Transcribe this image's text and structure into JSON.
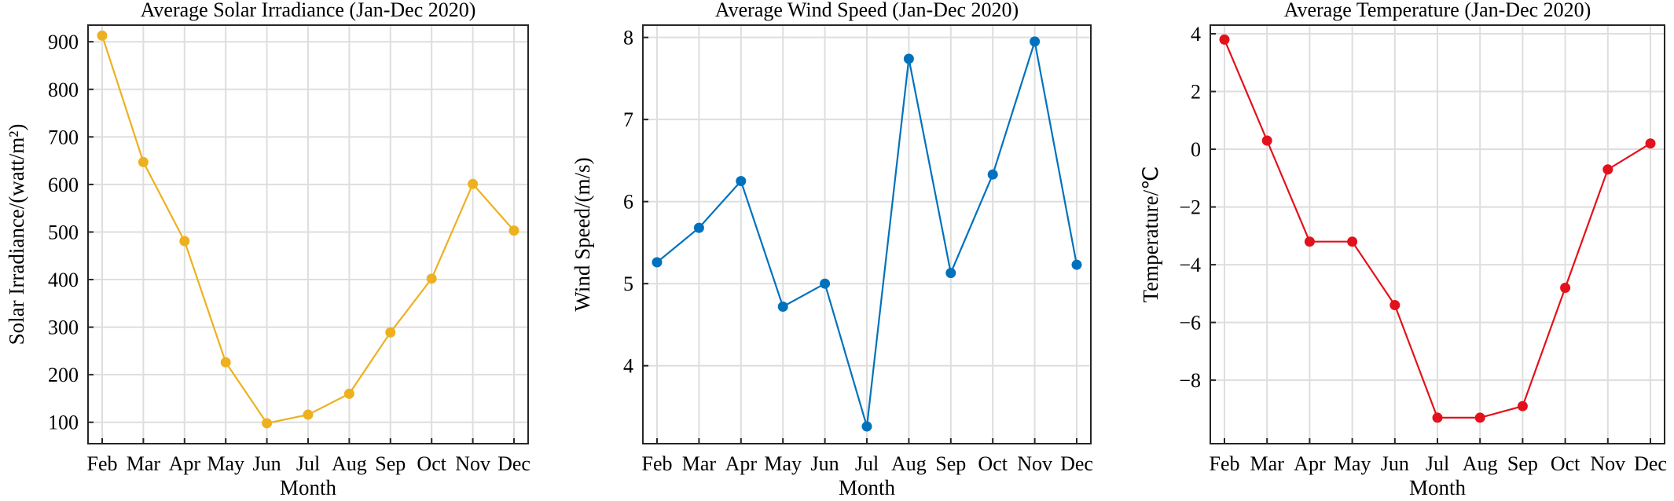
{
  "chart_data": [
    {
      "type": "line",
      "title": "Average Solar Irradiance (Jan-Dec 2020)",
      "xlabel": "Month",
      "ylabel": "Solar Irradiance/(watt/m²)",
      "categories": [
        "Feb",
        "Mar",
        "Apr",
        "May",
        "Jun",
        "Jul",
        "Aug",
        "Sep",
        "Oct",
        "Nov",
        "Dec"
      ],
      "values": [
        913,
        647,
        481,
        226,
        98,
        116,
        160,
        289,
        402,
        601,
        503
      ],
      "ylim": [
        55,
        935
      ],
      "yticks": [
        100,
        200,
        300,
        400,
        500,
        600,
        700,
        800,
        900
      ],
      "ytick_labels": [
        "100",
        "200",
        "300",
        "400",
        "500",
        "600",
        "700",
        "800",
        "900"
      ],
      "color": "#EDB120",
      "grid": true
    },
    {
      "type": "line",
      "title": "Average Wind Speed (Jan-Dec 2020)",
      "xlabel": "Month",
      "ylabel": "Wind Speed/(m/s)",
      "categories": [
        "Feb",
        "Mar",
        "Apr",
        "May",
        "Jun",
        "Jul",
        "Aug",
        "Sep",
        "Oct",
        "Nov",
        "Dec"
      ],
      "values": [
        5.26,
        5.68,
        6.25,
        4.72,
        5.0,
        3.26,
        7.74,
        5.13,
        6.33,
        7.95,
        5.23
      ],
      "ylim": [
        3.05,
        8.15
      ],
      "yticks": [
        4,
        5,
        6,
        7,
        8
      ],
      "ytick_labels": [
        "4",
        "5",
        "6",
        "7",
        "8"
      ],
      "color": "#0072BD",
      "grid": true
    },
    {
      "type": "line",
      "title": "Average Temperature (Jan-Dec 2020)",
      "xlabel": "Month",
      "ylabel": "Temperature/℃",
      "categories": [
        "Feb",
        "Mar",
        "Apr",
        "May",
        "Jun",
        "Jul",
        "Aug",
        "Sep",
        "Oct",
        "Nov",
        "Dec"
      ],
      "values": [
        3.8,
        0.3,
        -3.2,
        -3.2,
        -5.4,
        -9.3,
        -9.3,
        -8.9,
        -4.8,
        -0.7,
        0.2
      ],
      "ylim": [
        -10.2,
        4.3
      ],
      "yticks": [
        -8,
        -6,
        -4,
        -2,
        0,
        2,
        4
      ],
      "ytick_labels": [
        "−8",
        "−6",
        "−4",
        "−2",
        "0",
        "2",
        "4"
      ],
      "color": "#E3111B",
      "grid": true
    }
  ]
}
